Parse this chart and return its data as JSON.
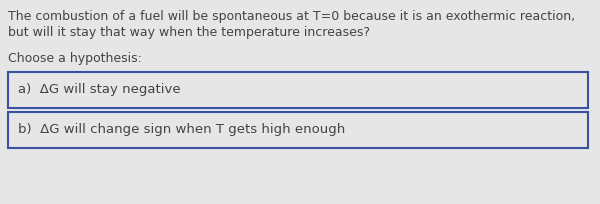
{
  "background_color": "#e6e6e6",
  "text_line1": "The combustion of a fuel will be spontaneous at T=0 because it is an exothermic reaction,",
  "text_line2": "but will it stay that way when the temperature increases?",
  "choose_label": "Choose a hypothesis:",
  "option_a": "a)  ΔG will stay negative",
  "option_b": "b)  ΔG will change sign when T gets high enough",
  "box_border_color": "#3a50a0",
  "box_fill_color": "#e6e6e6",
  "text_color": "#444444",
  "font_size_body": 9.0,
  "font_size_options": 9.5
}
